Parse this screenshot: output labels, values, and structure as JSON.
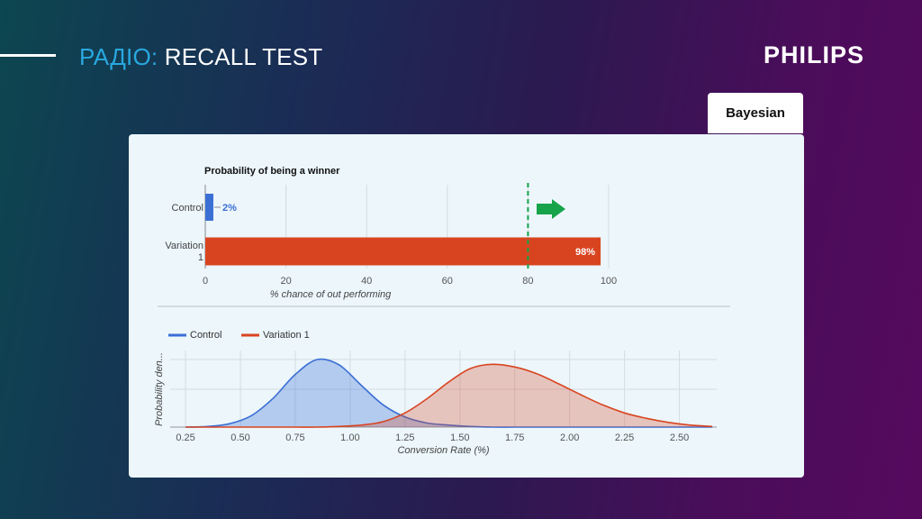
{
  "slide": {
    "title_highlight": "РАДІО:",
    "title_rest": "RECALL TEST",
    "logo": "PHILIPS",
    "tab_label": "Bayesian"
  },
  "colors": {
    "accent": "#29a8e0",
    "control": "#3b6fd4",
    "variation": "#d94420",
    "threshold": "#16a34a"
  },
  "chart_data": [
    {
      "type": "bar",
      "title": "Probability of being a winner",
      "xlabel": "% chance of out performing",
      "categories": [
        "Control",
        "Variation 1"
      ],
      "values": [
        2,
        98
      ],
      "value_labels": [
        "2%",
        "98%"
      ],
      "xlim": [
        0,
        100
      ],
      "xticks": [
        0,
        20,
        40,
        60,
        80,
        100
      ],
      "xtick_labels": [
        "0",
        "20",
        "40",
        "60",
        "80",
        "100"
      ],
      "threshold": 80,
      "grid": true,
      "orientation": "horizontal"
    },
    {
      "type": "area",
      "xlabel": "Conversion Rate (%)",
      "ylabel": "Probability den...",
      "xlim": [
        0.18,
        2.67
      ],
      "xticks": [
        0.25,
        0.5,
        0.75,
        1.0,
        1.25,
        1.5,
        1.75,
        2.0,
        2.25,
        2.5
      ],
      "xtick_labels": [
        "0.25",
        "0.50",
        "0.75",
        "1.00",
        "1.25",
        "1.50",
        "1.75",
        "2.00",
        "2.25",
        "2.50"
      ],
      "legend_position": "top-left",
      "grid": true,
      "series": [
        {
          "name": "Control",
          "x": [
            0.25,
            0.35,
            0.45,
            0.55,
            0.65,
            0.75,
            0.85,
            0.95,
            1.05,
            1.15,
            1.25,
            1.35,
            1.45,
            1.55,
            1.65,
            1.75,
            1.85,
            1.95,
            2.05,
            2.15,
            2.25,
            2.35,
            2.45,
            2.55,
            2.65
          ],
          "y": [
            0.0,
            0.01,
            0.05,
            0.17,
            0.43,
            0.78,
            1.0,
            0.92,
            0.62,
            0.33,
            0.15,
            0.06,
            0.03,
            0.01,
            0.0,
            0.0,
            0.0,
            0.0,
            0.0,
            0.0,
            0.0,
            0.0,
            0.0,
            0.0,
            0.0
          ]
        },
        {
          "name": "Variation 1",
          "x": [
            0.25,
            0.35,
            0.45,
            0.55,
            0.65,
            0.75,
            0.85,
            0.95,
            1.05,
            1.15,
            1.25,
            1.35,
            1.45,
            1.55,
            1.65,
            1.75,
            1.85,
            1.95,
            2.05,
            2.15,
            2.25,
            2.35,
            2.45,
            2.55,
            2.65
          ],
          "y": [
            0.0,
            0.0,
            0.0,
            0.0,
            0.0,
            0.0,
            0.0,
            0.01,
            0.03,
            0.08,
            0.21,
            0.42,
            0.67,
            0.87,
            0.93,
            0.89,
            0.79,
            0.64,
            0.48,
            0.33,
            0.21,
            0.13,
            0.07,
            0.03,
            0.01
          ]
        }
      ]
    }
  ]
}
